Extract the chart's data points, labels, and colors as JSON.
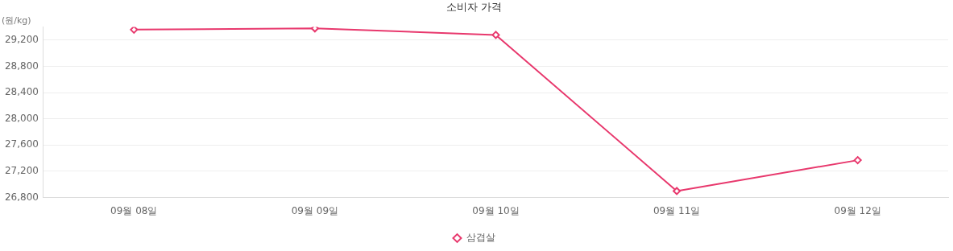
{
  "chart_data": {
    "type": "line",
    "title": "소비자 가격",
    "ylabel": "(원/kg)",
    "categories": [
      "09월 08일",
      "09월 09일",
      "09월 10일",
      "09월 11일",
      "09월 12일"
    ],
    "series": [
      {
        "name": "삼겹살",
        "color": "#e8386d",
        "values": [
          29360,
          29380,
          29280,
          26900,
          27370
        ]
      }
    ],
    "ylim": [
      26800,
      29400
    ],
    "yticks": [
      {
        "value": 26800,
        "label": "26,800"
      },
      {
        "value": 27200,
        "label": "27,200"
      },
      {
        "value": 27600,
        "label": "27,600"
      },
      {
        "value": 28000,
        "label": "28,000"
      },
      {
        "value": 28400,
        "label": "28,400"
      },
      {
        "value": 28800,
        "label": "28,800"
      },
      {
        "value": 29200,
        "label": "29,200"
      }
    ],
    "grid": "y",
    "legend": "bottom",
    "marker": "diamond",
    "line_style": "solid"
  }
}
